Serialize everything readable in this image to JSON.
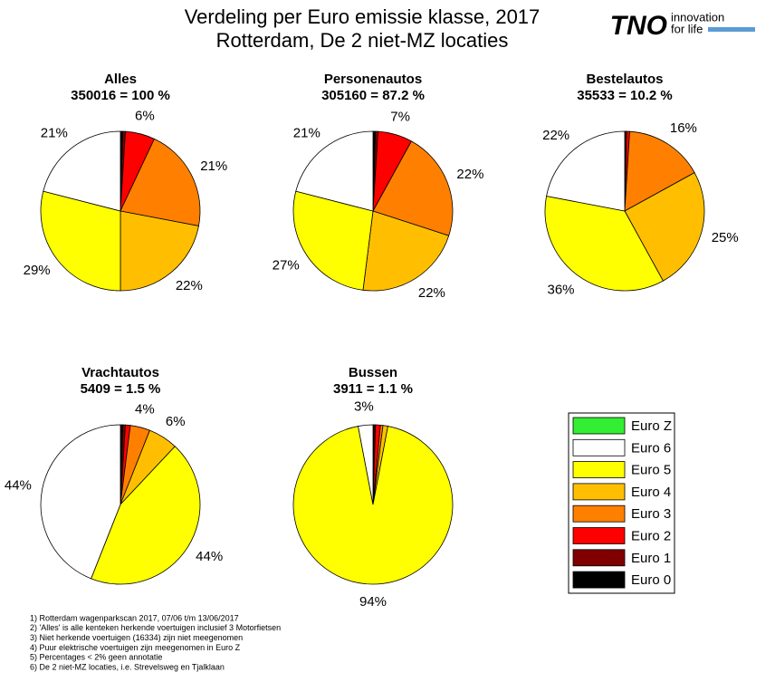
{
  "title": [
    "Verdeling per Euro emissie klasse, 2017",
    "Rotterdam, De 2 niet-MZ locaties"
  ],
  "logo": {
    "name": "TNO",
    "tagline": [
      "innovation",
      "for life"
    ]
  },
  "legend": {
    "labels": [
      "Euro Z",
      "Euro 6",
      "Euro 5",
      "Euro 4",
      "Euro 3",
      "Euro 2",
      "Euro 1",
      "Euro 0"
    ],
    "colors": [
      "#33ee33",
      "#ffffff",
      "#ffff00",
      "#ffbf00",
      "#ff8000",
      "#ff0000",
      "#800000",
      "#000000"
    ]
  },
  "chart_data": [
    {
      "type": "pie",
      "title": "Alles",
      "subtitle": "350016 = 100 %",
      "values": [
        0,
        21,
        29,
        22,
        21,
        6,
        0.5,
        0.5
      ],
      "value_labels": [
        null,
        "21%",
        "29%",
        "22%",
        "21%",
        "6%",
        null,
        null
      ]
    },
    {
      "type": "pie",
      "title": "Personenautos",
      "subtitle": "305160 = 87.2 %",
      "values": [
        0,
        21,
        27,
        22,
        22,
        7,
        0.5,
        0.5
      ],
      "value_labels": [
        null,
        "21%",
        "27%",
        "22%",
        "22%",
        "7%",
        null,
        null
      ]
    },
    {
      "type": "pie",
      "title": "Bestelautos",
      "subtitle": "35533 = 10.2 %",
      "values": [
        0,
        22,
        36,
        25,
        16,
        0.6,
        0.3,
        0.1
      ],
      "value_labels": [
        null,
        "22%",
        "36%",
        "25%",
        "16%",
        null,
        null,
        null
      ]
    },
    {
      "type": "pie",
      "title": "Vrachtautos",
      "subtitle": "5409 = 1.5 %",
      "values": [
        0,
        44,
        44,
        6,
        4,
        1,
        0.5,
        0.5
      ],
      "value_labels": [
        null,
        "44%",
        "44%",
        "6%",
        "4%",
        null,
        null,
        null
      ]
    },
    {
      "type": "pie",
      "title": "Bussen",
      "subtitle": "3911 = 1.1 %",
      "values": [
        0,
        3,
        94,
        1,
        0.5,
        1,
        0.3,
        0.2
      ],
      "value_labels": [
        null,
        "3%",
        "94%",
        null,
        null,
        null,
        null,
        null
      ]
    }
  ],
  "notes": [
    "1) Rotterdam wagenparkscan 2017, 07/06 t/m 13/06/2017",
    "2) 'Alles' is alle kenteken herkende voertuigen inclusief 3 Motorfietsen",
    "3) Niet herkende voertuigen (16334) zijn niet meegenomen",
    "4) Puur elektrische voertuigen zijn meegenomen in Euro Z",
    "5) Percentages < 2% geen annotatie",
    "6) De 2 niet-MZ locaties, i.e. Strevelsweg en Tjalklaan"
  ]
}
